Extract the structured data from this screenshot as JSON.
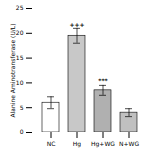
{
  "chart_data": {
    "type": "bar",
    "categories": [
      "NC",
      "Hg",
      "Hg+WG",
      "N+WG"
    ],
    "values": [
      6.0,
      19.5,
      8.5,
      4.0
    ],
    "errors": [
      1.2,
      1.5,
      1.0,
      0.8
    ],
    "colors": [
      "white",
      "#c8c8c8",
      "#b0b0b0",
      "#c0c0c0"
    ],
    "ylabel": "Alanine Aminotransferase (U/L)",
    "ylim": [
      0,
      25
    ],
    "yticks": [
      0,
      5,
      10,
      15,
      20,
      25
    ],
    "annotations": [
      {
        "text": "+++",
        "x": "Hg",
        "y": 21.2
      },
      {
        "text": "***",
        "x": "Hg+WG",
        "y": 10.0
      }
    ]
  }
}
